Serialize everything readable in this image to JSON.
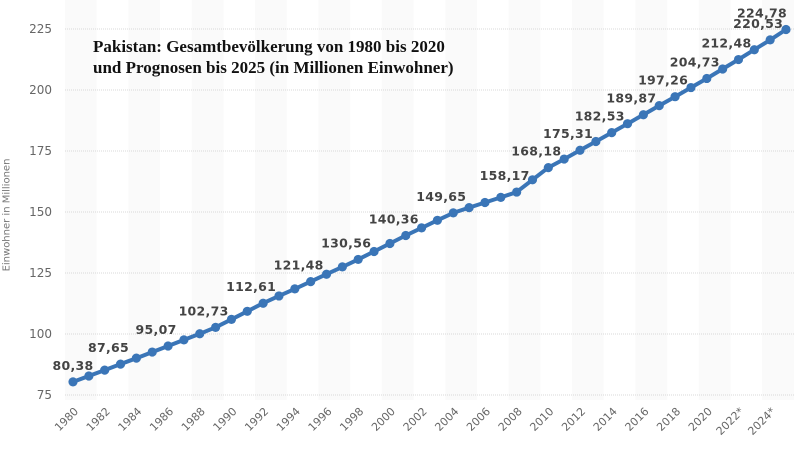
{
  "chart_data": {
    "type": "line",
    "title": "Pakistan: Gesamtbevölkerung von 1980 bis 2020 und Prognosen bis 2025 (in Millionen Einwohner)",
    "title_lines": [
      "Pakistan: Gesamtbevölkerung von 1980 bis 2020",
      "und Prognosen bis 2025 (in Millionen Einwohner)"
    ],
    "xlabel": "",
    "ylabel": "Einwohner in Millionen",
    "ylim": [
      75,
      225
    ],
    "yticks": [
      75,
      100,
      125,
      150,
      175,
      200,
      225
    ],
    "xlim": [
      1980,
      2025
    ],
    "x_tick_labels": [
      "1980",
      "1982",
      "1984",
      "1986",
      "1988",
      "1990",
      "1992",
      "1994",
      "1996",
      "1998",
      "2000",
      "2002",
      "2004",
      "2006",
      "2008",
      "2010",
      "2012",
      "2014",
      "2016",
      "2018",
      "2020",
      "2022*",
      "2024*"
    ],
    "grid": "horizontal",
    "line_color": "#3a75b7",
    "series": [
      {
        "name": "Einwohner",
        "x": [
          1980,
          1981,
          1982,
          1983,
          1984,
          1985,
          1986,
          1987,
          1988,
          1989,
          1990,
          1991,
          1992,
          1993,
          1994,
          1995,
          1996,
          1997,
          1998,
          1999,
          2000,
          2001,
          2002,
          2003,
          2004,
          2005,
          2006,
          2007,
          2008,
          2009,
          2010,
          2011,
          2012,
          2013,
          2014,
          2015,
          2016,
          2017,
          2018,
          2019,
          2020,
          2021,
          2022,
          2023,
          2024,
          2025
        ],
        "values": [
          80.38,
          82.8,
          85.2,
          87.65,
          90.1,
          92.6,
          95.07,
          97.6,
          100.1,
          102.73,
          106.0,
          109.3,
          112.61,
          115.6,
          118.5,
          121.48,
          124.5,
          127.5,
          130.56,
          133.8,
          137.1,
          140.36,
          143.5,
          146.6,
          149.65,
          151.8,
          153.9,
          156.0,
          158.17,
          163.2,
          168.18,
          171.7,
          175.31,
          178.9,
          182.53,
          186.2,
          189.87,
          193.6,
          197.26,
          201.0,
          204.73,
          208.6,
          212.48,
          216.5,
          220.53,
          224.78
        ]
      }
    ],
    "data_labels": [
      {
        "x": 1980,
        "text": "80,38"
      },
      {
        "x": 1983,
        "text": "87,65"
      },
      {
        "x": 1986,
        "text": "95,07"
      },
      {
        "x": 1989,
        "text": "102,73"
      },
      {
        "x": 1992,
        "text": "112,61"
      },
      {
        "x": 1995,
        "text": "121,48"
      },
      {
        "x": 1998,
        "text": "130,56"
      },
      {
        "x": 2001,
        "text": "140,36"
      },
      {
        "x": 2004,
        "text": "149,65"
      },
      {
        "x": 2008,
        "text": "158,17"
      },
      {
        "x": 2010,
        "text": "168,18"
      },
      {
        "x": 2012,
        "text": "175,31"
      },
      {
        "x": 2014,
        "text": "182,53"
      },
      {
        "x": 2016,
        "text": "189,87"
      },
      {
        "x": 2018,
        "text": "197,26"
      },
      {
        "x": 2020,
        "text": "204,73"
      },
      {
        "x": 2022,
        "text": "212,48"
      },
      {
        "x": 2024,
        "text": "220,53"
      },
      {
        "x": 2025,
        "text": "224,78"
      }
    ]
  }
}
